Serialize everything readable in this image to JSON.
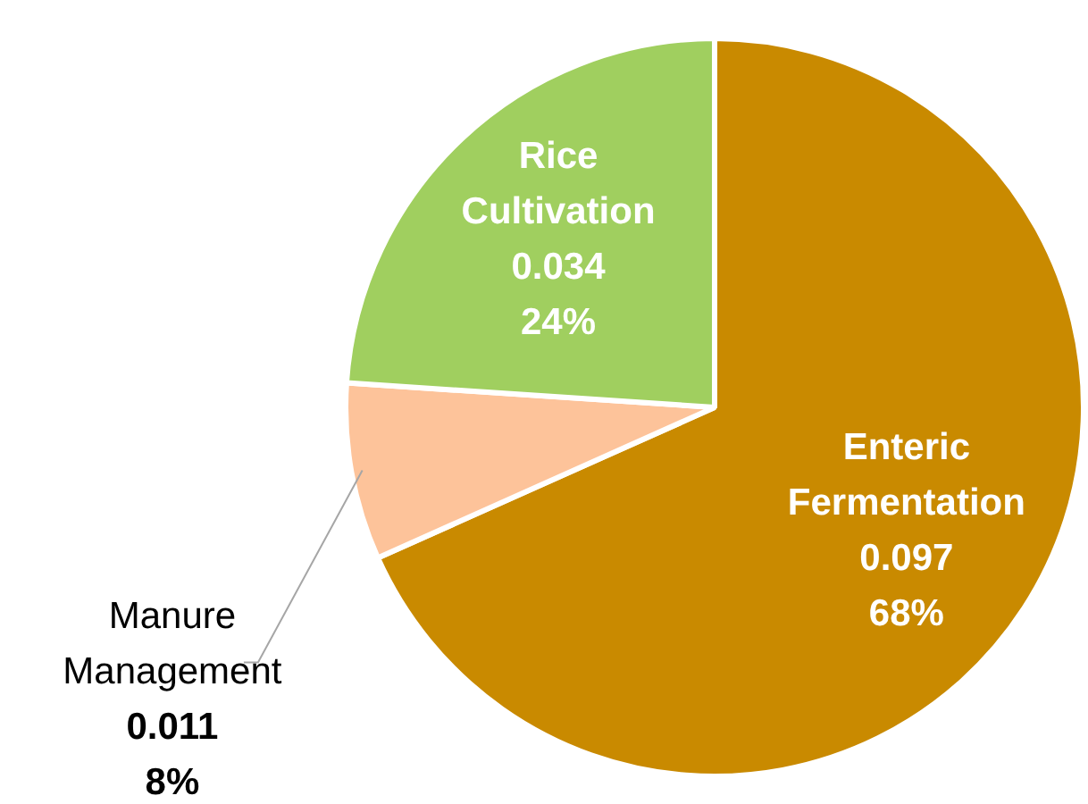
{
  "chart_data": {
    "type": "pie",
    "categories": [
      "Enteric Fermentation",
      "Manure Management",
      "Rice Cultivation"
    ],
    "values": [
      0.097,
      0.011,
      0.034
    ],
    "colors": [
      "#c98a00",
      "#fdc39a",
      "#a0cf5f"
    ],
    "value_labels": [
      "0.097\n68%",
      "0.011\n8%",
      "0.034\n24%"
    ],
    "legend": false
  }
}
